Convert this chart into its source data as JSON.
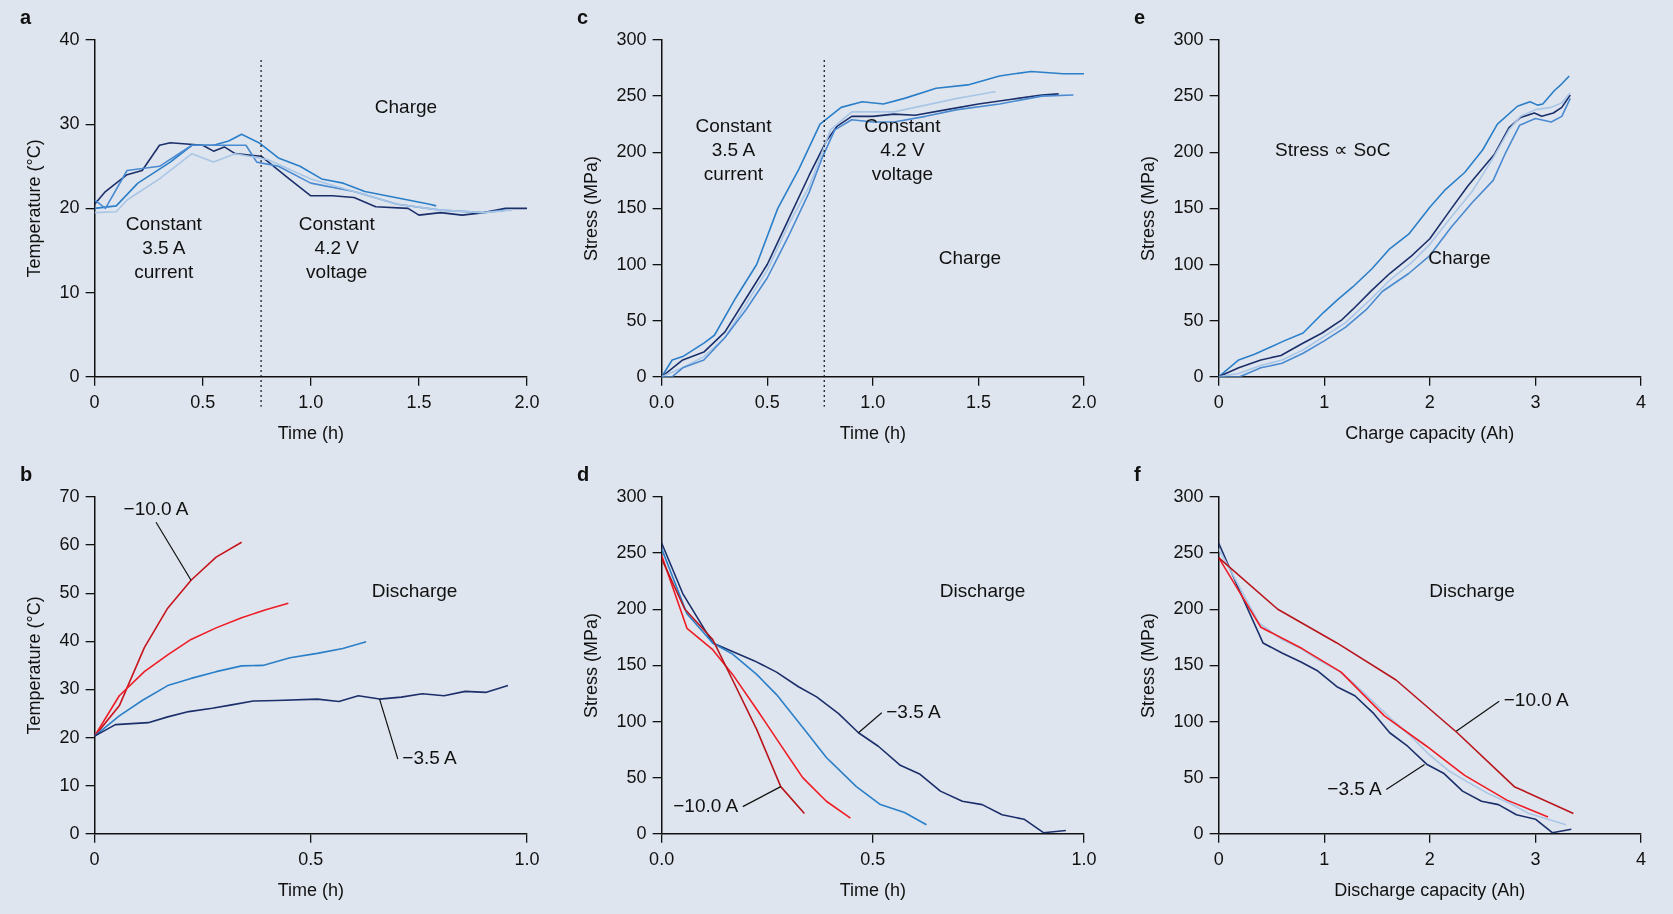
{
  "chart_data": [
    {
      "type": "line",
      "title": "a",
      "xlabel": "Time (h)",
      "ylabel": "Temperature (°C)",
      "xlim": [
        0,
        2
      ],
      "ylim": [
        0,
        40
      ],
      "xticks": [
        0,
        0.5,
        {
          "value": 1,
          "label": "1.0"
        },
        1.5,
        {
          "value": 2,
          "label": "2.0"
        }
      ],
      "yticks": [
        0,
        10,
        20,
        30,
        40
      ],
      "ref_lines": [
        {
          "axis": "x",
          "value": 0.77,
          "line_style": "dotted",
          "color": "#111111"
        }
      ],
      "annotations": [
        "Charge",
        "Constant\n3.5 A\ncurrent",
        "Constant\n4.2 V\nvoltage"
      ],
      "series": [
        {
          "color": "#1b2f6b",
          "x": [
            0,
            0.05,
            0.15,
            0.22,
            0.3,
            0.35,
            0.5,
            0.55,
            0.6,
            0.65,
            0.77,
            0.9,
            1.0,
            1.1,
            1.2,
            1.3,
            1.45,
            1.5,
            1.6,
            1.7,
            1.8,
            1.9,
            2.0
          ],
          "values": [
            20.5,
            22,
            24,
            24.5,
            27.5,
            27.8,
            27.5,
            26.8,
            27.3,
            26.5,
            26.2,
            23.5,
            21.5,
            21.5,
            21.3,
            20.2,
            20,
            19.2,
            19.5,
            19.2,
            19.5,
            20,
            20
          ]
        },
        {
          "color": "#2a7fc8",
          "x": [
            0,
            0.1,
            0.2,
            0.35,
            0.45,
            0.55,
            0.62,
            0.68,
            0.76,
            0.85,
            0.95,
            1.05,
            1.15,
            1.25,
            1.35,
            1.45,
            1.55,
            1.58
          ],
          "values": [
            20,
            20.3,
            23,
            25.5,
            27.5,
            27.5,
            28,
            28.8,
            27.8,
            26,
            25,
            23.5,
            23,
            22,
            21.5,
            21,
            20.5,
            20.3
          ]
        },
        {
          "color": "#4a8ad0",
          "x": [
            0,
            0.05,
            0.15,
            0.3,
            0.45,
            0.6,
            0.7,
            0.75,
            0.85,
            1.0,
            1.2,
            1.4,
            1.6,
            1.8,
            1.9
          ],
          "values": [
            21,
            20,
            24.5,
            25,
            27.5,
            27.5,
            27.5,
            25.5,
            25,
            23,
            22,
            20.5,
            19.8,
            19.5,
            19.8
          ]
        },
        {
          "color": "#a9c6e6",
          "x": [
            0,
            0.1,
            0.15,
            0.3,
            0.45,
            0.55,
            0.65,
            0.8,
            1.0,
            1.2,
            1.4,
            1.6,
            1.8,
            1.93
          ],
          "values": [
            19.5,
            19.6,
            21,
            23.5,
            26.5,
            25.5,
            26.5,
            25.8,
            23.5,
            22,
            20.5,
            19.8,
            19.5,
            19.8
          ]
        }
      ]
    },
    {
      "type": "line",
      "title": "c",
      "xlabel": "Time (h)",
      "ylabel": "Stress (MPa)",
      "xlim": [
        0,
        2
      ],
      "ylim": [
        0,
        300
      ],
      "xticks": [
        {
          "value": 0,
          "label": "0.0"
        },
        0.5,
        {
          "value": 1,
          "label": "1.0"
        },
        1.5,
        {
          "value": 2,
          "label": "2.0"
        }
      ],
      "yticks": [
        0,
        50,
        100,
        150,
        200,
        250,
        300
      ],
      "ref_lines": [
        {
          "axis": "x",
          "value": 0.77,
          "line_style": "dotted",
          "color": "#111111"
        }
      ],
      "annotations": [
        "Constant\n3.5 A\ncurrent",
        "Constant\n4.2 V\nvoltage",
        "Charge"
      ],
      "series": [
        {
          "color": "#2a7fc8",
          "x": [
            0,
            0.05,
            0.1,
            0.2,
            0.25,
            0.35,
            0.45,
            0.55,
            0.65,
            0.75,
            0.85,
            0.95,
            1.05,
            1.15,
            1.3,
            1.45,
            1.6,
            1.75,
            1.9,
            2.0
          ],
          "values": [
            0,
            15,
            18,
            30,
            37,
            70,
            100,
            150,
            185,
            225,
            240,
            245,
            243,
            248,
            257,
            260,
            268,
            272,
            270,
            270
          ]
        },
        {
          "color": "#1b2f6b",
          "x": [
            0,
            0.1,
            0.2,
            0.3,
            0.4,
            0.5,
            0.6,
            0.7,
            0.78,
            0.83,
            0.9,
            1.0,
            1.1,
            1.2,
            1.35,
            1.5,
            1.65,
            1.8,
            1.88
          ],
          "values": [
            0,
            15,
            22,
            40,
            70,
            100,
            140,
            180,
            210,
            223,
            232,
            232,
            234,
            233,
            238,
            243,
            247,
            251,
            252
          ]
        },
        {
          "color": "#a9c6e6",
          "x": [
            0,
            0.1,
            0.2,
            0.3,
            0.4,
            0.5,
            0.6,
            0.7,
            0.8,
            0.9,
            1.0,
            1.1,
            1.25,
            1.4,
            1.55,
            1.58
          ],
          "values": [
            0,
            8,
            18,
            35,
            65,
            95,
            135,
            170,
            220,
            236,
            236,
            236,
            242,
            248,
            253,
            254
          ]
        },
        {
          "color": "#4a8ad0",
          "x": [
            0,
            0.05,
            0.1,
            0.2,
            0.3,
            0.4,
            0.5,
            0.6,
            0.7,
            0.76,
            0.82,
            0.9,
            1.0,
            1.1,
            1.25,
            1.4,
            1.6,
            1.8,
            1.95
          ],
          "values": [
            0,
            0,
            8,
            15,
            35,
            60,
            88,
            125,
            165,
            195,
            220,
            229,
            227,
            227,
            232,
            238,
            243,
            250,
            251
          ]
        }
      ]
    },
    {
      "type": "line",
      "title": "e",
      "xlabel": "Charge capacity (Ah)",
      "ylabel": "Stress (MPa)",
      "xlim": [
        0,
        4
      ],
      "ylim": [
        0,
        300
      ],
      "xticks": [
        0,
        1,
        2,
        3,
        4
      ],
      "yticks": [
        0,
        50,
        100,
        150,
        200,
        250,
        300
      ],
      "annotations": [
        "Stress ∝ SoC",
        "Charge"
      ],
      "series": [
        {
          "color": "#2a7fc8",
          "x": [
            0,
            0.19,
            0.34,
            0.62,
            0.8,
            0.99,
            1.13,
            1.27,
            1.45,
            1.62,
            1.8,
            2.0,
            2.15,
            2.33,
            2.5,
            2.64,
            2.83,
            2.95,
            3.02,
            3.07,
            3.18,
            3.25,
            3.32
          ],
          "values": [
            0,
            15,
            20,
            32,
            39,
            57,
            69,
            80,
            96,
            114,
            127,
            151,
            167,
            182,
            202,
            225,
            241,
            245,
            242,
            243,
            255,
            261,
            268
          ]
        },
        {
          "color": "#1b2f6b",
          "x": [
            0,
            0.19,
            0.4,
            0.59,
            0.78,
            0.98,
            1.17,
            1.27,
            1.45,
            1.62,
            1.83,
            2.0,
            2.19,
            2.36,
            2.61,
            2.75,
            2.86,
            2.99,
            3.06,
            3.17,
            3.25,
            3.33
          ],
          "values": [
            0,
            8,
            15,
            19,
            29,
            39,
            51,
            60,
            77,
            92,
            108,
            123,
            148,
            170,
            198,
            222,
            231,
            235,
            232,
            235,
            240,
            251
          ]
        },
        {
          "color": "#a9c6e6",
          "x": [
            0,
            0.19,
            0.4,
            0.6,
            0.8,
            1.0,
            1.2,
            1.45,
            1.62,
            1.83,
            2.0,
            2.2,
            2.4,
            2.6,
            2.75,
            2.86,
            3.0,
            3.15,
            3.25,
            3.33
          ],
          "values": [
            0,
            3,
            10,
            15,
            24,
            36,
            48,
            70,
            86,
            102,
            118,
            142,
            165,
            195,
            220,
            232,
            238,
            240,
            244,
            253
          ]
        },
        {
          "color": "#4a8ad0",
          "x": [
            0,
            0.2,
            0.4,
            0.6,
            0.8,
            1.0,
            1.2,
            1.4,
            1.55,
            1.8,
            2.0,
            2.2,
            2.4,
            2.6,
            2.72,
            2.85,
            3.0,
            3.15,
            3.25,
            3.33
          ],
          "values": [
            0,
            0,
            8,
            12,
            21,
            32,
            44,
            60,
            76,
            92,
            108,
            133,
            155,
            175,
            200,
            224,
            230,
            227,
            232,
            248
          ]
        }
      ]
    },
    {
      "type": "line",
      "title": "b",
      "xlabel": "Time (h)",
      "ylabel": "Temperature (°C)",
      "xlim": [
        0,
        1
      ],
      "ylim": [
        0,
        70
      ],
      "xticks": [
        0,
        0.5,
        {
          "value": 1,
          "label": "1.0"
        }
      ],
      "yticks": [
        0,
        10,
        20,
        30,
        40,
        50,
        60,
        70
      ],
      "annotations": [
        {
          "text": "−10.0 A",
          "x": 0.223,
          "y": 52.7
        },
        {
          "text": "−3.5 A",
          "x": 0.659,
          "y": 28
        },
        "Discharge"
      ],
      "series": [
        {
          "color": "#c8141c",
          "x": [
            0,
            0.057,
            0.115,
            0.169,
            0.223,
            0.281,
            0.34
          ],
          "values": [
            20.3,
            26.6,
            38.7,
            46.9,
            52.7,
            57.5,
            60.6
          ]
        },
        {
          "color": "#ee1c24",
          "x": [
            0,
            0.057,
            0.115,
            0.169,
            0.223,
            0.281,
            0.34,
            0.394,
            0.448
          ],
          "values": [
            20.3,
            28.7,
            33.7,
            37.2,
            40.4,
            42.8,
            44.9,
            46.5,
            47.9
          ]
        },
        {
          "color": "#2a7fc8",
          "x": [
            0,
            0.057,
            0.11,
            0.169,
            0.223,
            0.281,
            0.34,
            0.389,
            0.452,
            0.515,
            0.574,
            0.628
          ],
          "values": [
            20.3,
            24.5,
            27.7,
            30.8,
            32.3,
            33.7,
            34.9,
            35,
            36.6,
            37.5,
            38.5,
            39.9
          ]
        },
        {
          "color": "#1b2f6b",
          "x": [
            0,
            0.048,
            0.124,
            0.169,
            0.218,
            0.272,
            0.317,
            0.367,
            0.421,
            0.515,
            0.565,
            0.61,
            0.659,
            0.709,
            0.758,
            0.808,
            0.857,
            0.906,
            0.956
          ],
          "values": [
            20.3,
            22.7,
            23.1,
            24.3,
            25.4,
            26.1,
            26.8,
            27.6,
            27.7,
            28,
            27.5,
            28.7,
            28,
            28.4,
            29.1,
            28.7,
            29.6,
            29.4,
            30.8
          ]
        }
      ]
    },
    {
      "type": "line",
      "title": "d",
      "xlabel": "Time (h)",
      "ylabel": "Stress (MPa)",
      "xlim": [
        0,
        1
      ],
      "ylim": [
        0,
        300
      ],
      "xticks": [
        {
          "value": 0,
          "label": "0.0"
        },
        0.5,
        {
          "value": 1,
          "label": "1.0"
        }
      ],
      "yticks": [
        0,
        50,
        100,
        150,
        200,
        250,
        300
      ],
      "annotations": [
        {
          "text": "−3.5 A",
          "x": 0.466,
          "y": 90
        },
        {
          "text": "−10.0 A",
          "x": 0.282,
          "y": 42
        },
        "Discharge"
      ],
      "series": [
        {
          "color": "#1b2f6b",
          "x": [
            0,
            0.05,
            0.121,
            0.22,
            0.272,
            0.324,
            0.367,
            0.419,
            0.466,
            0.513,
            0.565,
            0.612,
            0.66,
            0.712,
            0.759,
            0.806,
            0.858,
            0.904,
            0.957
          ],
          "values": [
            259,
            214,
            170,
            154,
            144,
            131,
            122,
            107,
            90,
            78,
            61,
            53,
            38,
            29,
            26,
            17,
            13,
            1,
            3
          ]
        },
        {
          "color": "#2a7fc8",
          "x": [
            0,
            0.06,
            0.121,
            0.168,
            0.225,
            0.272,
            0.338,
            0.39,
            0.461,
            0.518,
            0.575,
            0.627
          ],
          "values": [
            254,
            196,
            170,
            160,
            142,
            124,
            93,
            68,
            42,
            26,
            19,
            8
          ]
        },
        {
          "color": "#ee1c24",
          "x": [
            0,
            0.06,
            0.121,
            0.168,
            0.225,
            0.282,
            0.334,
            0.39,
            0.447
          ],
          "values": [
            248,
            183,
            164,
            142,
            111,
            79,
            50,
            29,
            14
          ]
        },
        {
          "color": "#b8161c",
          "x": [
            0,
            0.055,
            0.121,
            0.168,
            0.225,
            0.282,
            0.338
          ],
          "values": [
            245,
            200,
            173,
            137,
            93,
            42,
            18
          ]
        }
      ]
    },
    {
      "type": "line",
      "title": "f",
      "xlabel": "Discharge capacity (Ah)",
      "ylabel": "Stress (MPa)",
      "xlim": [
        0,
        4
      ],
      "ylim": [
        0,
        300
      ],
      "xticks": [
        0,
        1,
        2,
        3,
        4
      ],
      "yticks": [
        0,
        50,
        100,
        150,
        200,
        250,
        300
      ],
      "annotations": [
        "Discharge",
        {
          "text": "−10.0 A",
          "x": 2.25,
          "y": 91.4
        },
        {
          "text": "−3.5 A",
          "x": 1.95,
          "y": 61.7
        }
      ],
      "series": [
        {
          "color": "#1b2f6b",
          "x": [
            0,
            0.2,
            0.42,
            0.6,
            0.78,
            0.94,
            1.12,
            1.29,
            1.47,
            1.62,
            1.79,
            1.97,
            2.13,
            2.31,
            2.49,
            2.65,
            2.82,
            3.0,
            3.16,
            3.34
          ],
          "values": [
            259,
            216,
            170,
            161,
            153,
            145,
            131,
            123,
            107,
            90,
            78,
            62,
            54,
            38,
            29,
            26,
            17,
            13,
            1,
            4
          ]
        },
        {
          "color": "#a9c6e6",
          "x": [
            0,
            0.38,
            0.6,
            0.78,
            0.96,
            1.14,
            1.28,
            1.46,
            1.64,
            1.82,
            2.0,
            2.18,
            2.36,
            2.55,
            2.76,
            2.94,
            3.29
          ],
          "values": [
            254,
            188,
            173,
            165,
            154,
            145,
            134,
            118,
            102,
            87,
            70,
            56,
            46,
            36,
            27,
            18,
            8
          ]
        },
        {
          "color": "#ee1c24",
          "x": [
            0,
            0.4,
            0.79,
            1.16,
            1.57,
            1.97,
            2.33,
            2.73,
            3.12
          ],
          "values": [
            246,
            184,
            165,
            144,
            105,
            78,
            52,
            30,
            15
          ]
        },
        {
          "color": "#b8161c",
          "x": [
            0,
            0.56,
            1.12,
            1.68,
            2.26,
            2.8,
            3.36
          ],
          "values": [
            246,
            200,
            170,
            137,
            90,
            42,
            18
          ]
        }
      ]
    }
  ]
}
